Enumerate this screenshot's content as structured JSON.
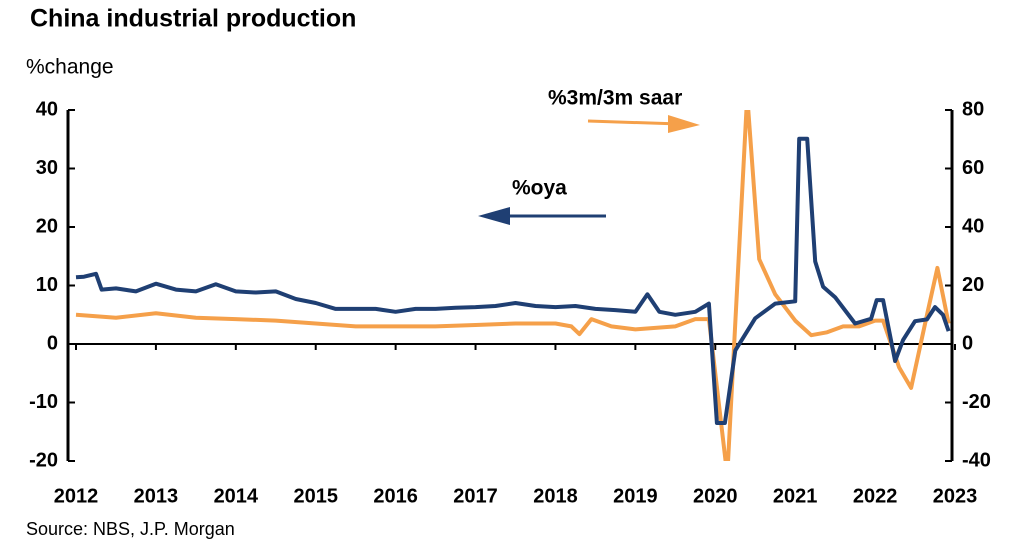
{
  "chart_data": {
    "type": "line",
    "title": "China industrial production",
    "y_label": "%change",
    "source": "Source: NBS, J.P. Morgan",
    "annotations": [
      "%3m/3m saar",
      "%oya"
    ],
    "xlim": [
      2012,
      2023
    ],
    "xticks": [
      2012,
      2013,
      2014,
      2015,
      2016,
      2017,
      2018,
      2019,
      2020,
      2021,
      2022,
      2023
    ],
    "ylim": [
      -20,
      40
    ],
    "yticks": [
      -20,
      -10,
      0,
      10,
      20,
      30,
      40
    ],
    "y2lim": [
      -40,
      80
    ],
    "y2ticks": [
      -40,
      -20,
      0,
      20,
      40,
      60,
      80
    ],
    "series": [
      {
        "name": "%oya",
        "color": "#1f3f73",
        "axis": "y",
        "x": [
          2012,
          2012.1,
          2012.25,
          2012.32,
          2012.5,
          2012.75,
          2013,
          2013.25,
          2013.5,
          2013.75,
          2014,
          2014.25,
          2014.5,
          2014.75,
          2015,
          2015.25,
          2015.5,
          2015.75,
          2016,
          2016.25,
          2016.5,
          2016.75,
          2017,
          2017.25,
          2017.5,
          2017.75,
          2018,
          2018.25,
          2018.5,
          2018.75,
          2019,
          2019.15,
          2019.3,
          2019.5,
          2019.75,
          2019.92,
          2020.02,
          2020.12,
          2020.25,
          2020.5,
          2020.75,
          2021,
          2021.05,
          2021.15,
          2021.25,
          2021.35,
          2021.5,
          2021.65,
          2021.75,
          2021.95,
          2022.02,
          2022.1,
          2022.25,
          2022.35,
          2022.5,
          2022.65,
          2022.75,
          2022.85,
          2022.92
        ],
        "values": [
          11.4,
          11.5,
          12,
          9.3,
          9.5,
          9,
          10.3,
          9.3,
          9,
          10.2,
          9,
          8.8,
          9,
          7.7,
          7,
          6,
          6,
          6,
          5.5,
          6,
          6,
          6.2,
          6.3,
          6.5,
          7,
          6.5,
          6.3,
          6.5,
          6,
          5.8,
          5.5,
          8.5,
          5.5,
          5,
          5.5,
          6.9,
          -13.5,
          -13.5,
          -1.1,
          4.4,
          6.9,
          7.3,
          35.1,
          35.1,
          14.1,
          9.8,
          8,
          5.3,
          3.5,
          4.3,
          7.5,
          7.5,
          -2.9,
          0.7,
          3.9,
          4.2,
          6.3,
          5,
          2.2
        ]
      },
      {
        "name": "%3m/3m saar",
        "color": "#f5a04a",
        "axis": "y2",
        "x": [
          2012,
          2012.5,
          2013,
          2013.5,
          2014,
          2014.5,
          2015,
          2015.5,
          2016,
          2016.5,
          2017,
          2017.5,
          2018,
          2018.2,
          2018.3,
          2018.45,
          2018.7,
          2019,
          2019.5,
          2019.75,
          2019.92,
          2020.15,
          2020.4,
          2020.55,
          2020.75,
          2021,
          2021.2,
          2021.4,
          2021.6,
          2021.8,
          2022,
          2022.1,
          2022.3,
          2022.45,
          2022.65,
          2022.78,
          2022.92
        ],
        "values": [
          10,
          9,
          10.5,
          9,
          8.5,
          8,
          7,
          6,
          6,
          6,
          6.5,
          7,
          7,
          6,
          3.4,
          8.5,
          6,
          5,
          6,
          8.5,
          8.5,
          -45,
          85,
          29,
          17,
          8,
          3,
          4,
          6,
          6,
          8,
          8,
          -8,
          -15,
          10,
          26,
          7
        ]
      }
    ]
  }
}
